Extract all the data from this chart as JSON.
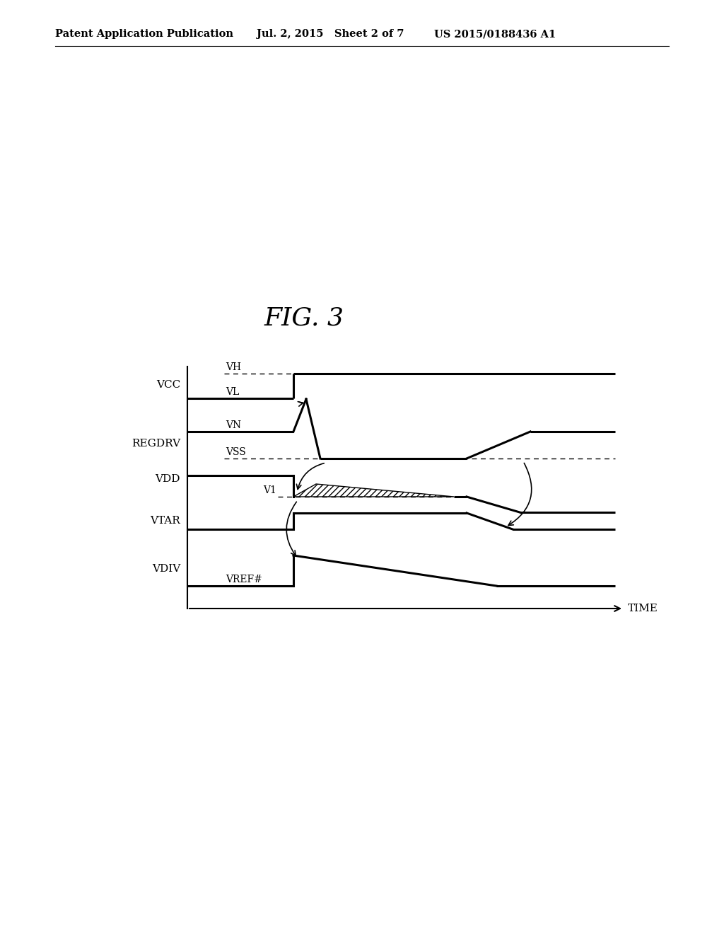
{
  "header_left": "Patent Application Publication",
  "header_mid": "Jul. 2, 2015   Sheet 2 of 7",
  "header_right": "US 2015/0188436 A1",
  "title": "FIG. 3",
  "time_label": "TIME",
  "lw_signal": 2.2,
  "lw_axis": 1.5,
  "lw_dash": 1.0,
  "lw_hatch": 1.0,
  "background": "#ffffff"
}
